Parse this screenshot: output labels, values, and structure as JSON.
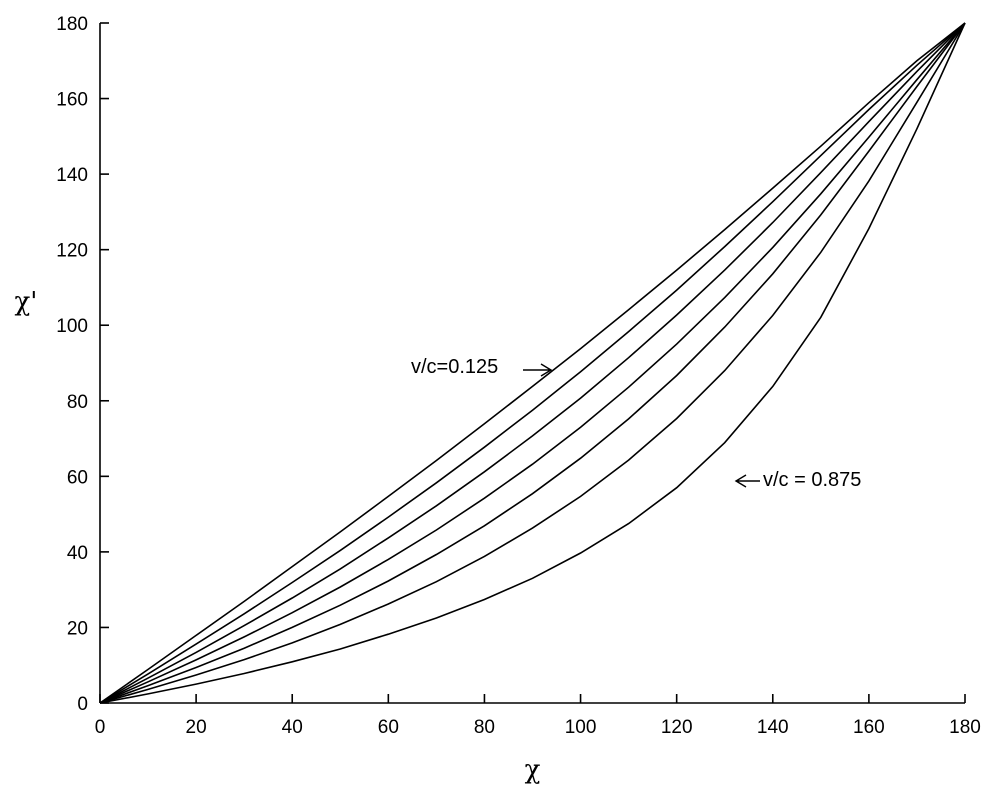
{
  "chart_data": {
    "type": "line",
    "title": "",
    "xlabel": "χ",
    "ylabel": "χ'",
    "xlim": [
      0,
      180
    ],
    "ylim": [
      0,
      180
    ],
    "xticks": [
      "0",
      "20",
      "40",
      "60",
      "80",
      "100",
      "120",
      "140",
      "160",
      "180"
    ],
    "yticks": [
      "0",
      "20",
      "40",
      "60",
      "80",
      "100",
      "120",
      "140",
      "160",
      "180"
    ],
    "grid": false,
    "legend": "none",
    "x": [
      0,
      10,
      20,
      30,
      40,
      50,
      60,
      70,
      80,
      90,
      100,
      110,
      120,
      130,
      140,
      150,
      160,
      170,
      180
    ],
    "series": [
      {
        "values": [
          0,
          8.9,
          17.9,
          26.9,
          36.1,
          45.3,
          54.7,
          64.2,
          73.9,
          83.8,
          93.8,
          104.1,
          114.6,
          125.3,
          136.3,
          147.4,
          158.9,
          170.0,
          180
        ]
      },
      {
        "values": [
          0,
          7.7,
          15.6,
          23.6,
          31.9,
          40.4,
          49.2,
          58.3,
          67.7,
          77.5,
          87.7,
          98.3,
          109.3,
          120.8,
          132.7,
          144.9,
          157.1,
          168.8,
          180
        ]
      },
      {
        "values": [
          0,
          6.6,
          13.4,
          20.5,
          27.8,
          35.5,
          43.7,
          52.2,
          61.2,
          70.7,
          80.7,
          91.4,
          102.7,
          114.6,
          127.2,
          140.4,
          153.9,
          167.2,
          180
        ]
      },
      {
        "values": [
          0,
          5.6,
          11.4,
          17.5,
          23.9,
          30.7,
          38.0,
          45.8,
          54.2,
          63.2,
          73.0,
          83.6,
          95.0,
          107.3,
          120.6,
          134.8,
          149.8,
          165.0,
          180
        ]
      },
      {
        "values": [
          0,
          4.6,
          9.4,
          14.5,
          20.0,
          25.9,
          32.3,
          39.3,
          46.9,
          55.4,
          64.8,
          75.2,
          86.7,
          99.5,
          113.6,
          129.2,
          146.1,
          163.2,
          180
        ]
      },
      {
        "values": [
          0,
          3.6,
          7.4,
          11.5,
          15.9,
          20.8,
          26.2,
          32.1,
          38.8,
          46.3,
          54.7,
          64.3,
          75.3,
          88.0,
          102.6,
          119.3,
          138.2,
          159.0,
          180
        ]
      },
      {
        "values": [
          0,
          2.4,
          5.0,
          7.8,
          10.9,
          14.3,
          18.2,
          22.5,
          27.4,
          33.0,
          39.7,
          47.5,
          57.0,
          68.9,
          83.8,
          102.1,
          125.6,
          152.0,
          180
        ]
      }
    ],
    "annotations": [
      {
        "text": "v/c=0.125",
        "target_series": 0,
        "arrow_direction": "right"
      },
      {
        "text": "v/c = 0.875",
        "target_series": 6,
        "arrow_direction": "left"
      }
    ]
  }
}
